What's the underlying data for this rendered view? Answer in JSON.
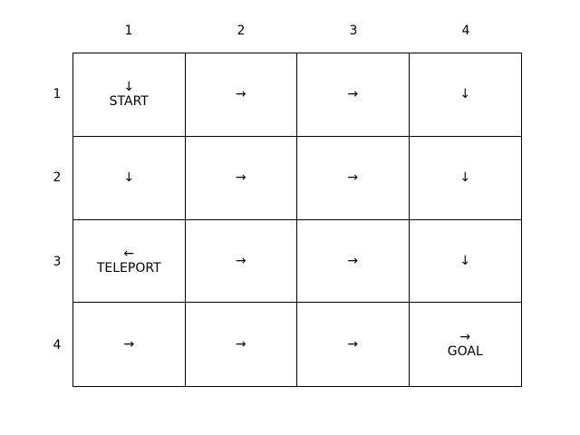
{
  "columns": [
    "1",
    "2",
    "3",
    "4"
  ],
  "rows": [
    "1",
    "2",
    "3",
    "4"
  ],
  "cells": [
    [
      {
        "arrow": "↓",
        "text": "START"
      },
      {
        "arrow": "→",
        "text": ""
      },
      {
        "arrow": "→",
        "text": ""
      },
      {
        "arrow": "↓",
        "text": ""
      }
    ],
    [
      {
        "arrow": "↓",
        "text": ""
      },
      {
        "arrow": "→",
        "text": ""
      },
      {
        "arrow": "→",
        "text": ""
      },
      {
        "arrow": "↓",
        "text": ""
      }
    ],
    [
      {
        "arrow": "←",
        "text": "TELEPORT"
      },
      {
        "arrow": "→",
        "text": ""
      },
      {
        "arrow": "→",
        "text": ""
      },
      {
        "arrow": "↓",
        "text": ""
      }
    ],
    [
      {
        "arrow": "→",
        "text": ""
      },
      {
        "arrow": "→",
        "text": ""
      },
      {
        "arrow": "→",
        "text": ""
      },
      {
        "arrow": "→",
        "text": "GOAL"
      }
    ]
  ]
}
